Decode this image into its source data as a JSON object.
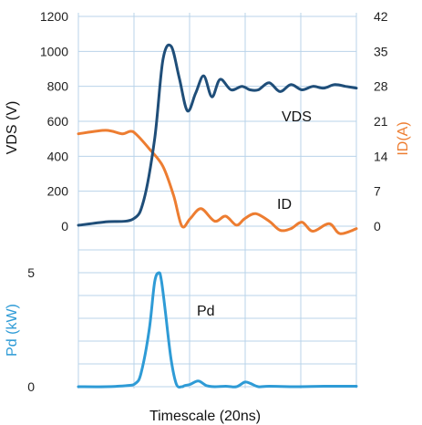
{
  "chart_data": [
    {
      "type": "line",
      "panel": "top",
      "xlabel": "",
      "ylabel": "VDS (V)",
      "ylim": [
        0,
        1200
      ],
      "yticks": [
        "0",
        "200",
        "400",
        "600",
        "800",
        "1000",
        "1200"
      ],
      "ylabel_right": "ID(A)",
      "y2lim": [
        0,
        42
      ],
      "y2ticks": [
        "0",
        "7",
        "14",
        "21",
        "28",
        "35",
        "42"
      ],
      "grid": true,
      "annotations": [
        {
          "text": "VDS"
        },
        {
          "text": "ID"
        }
      ],
      "series": [
        {
          "name": "VDS",
          "axis": "left",
          "color": "#1f4e79",
          "x": [
            0,
            0.5,
            1,
            1.2,
            1.4,
            1.55,
            1.7,
            1.85,
            2.0,
            2.15,
            2.3,
            2.45,
            2.6,
            2.8,
            3.0,
            3.15,
            3.3,
            3.5,
            3.7,
            3.9,
            4.1,
            4.3,
            4.5,
            4.7,
            4.9,
            5.1
          ],
          "values": [
            5,
            25,
            40,
            150,
            500,
            950,
            1030,
            850,
            660,
            760,
            860,
            740,
            840,
            780,
            800,
            780,
            780,
            820,
            770,
            810,
            780,
            800,
            790,
            810,
            800,
            790
          ]
        },
        {
          "name": "ID",
          "axis": "right",
          "color": "#ed7d31",
          "x": [
            0,
            0.5,
            0.8,
            0.95,
            1.05,
            1.3,
            1.55,
            1.75,
            1.9,
            2.05,
            2.25,
            2.5,
            2.7,
            2.9,
            3.05,
            3.25,
            3.5,
            3.7,
            3.9,
            4.1,
            4.3,
            4.6,
            4.8,
            5.1
          ],
          "values": [
            18.5,
            19.2,
            18.5,
            19.0,
            18.5,
            15.5,
            12.0,
            6.0,
            0.0,
            1.5,
            3.5,
            1.0,
            2.0,
            0.2,
            1.5,
            2.5,
            1.0,
            -0.8,
            -0.5,
            0.8,
            -1.0,
            0.5,
            -1.5,
            -0.5
          ]
        }
      ]
    },
    {
      "type": "line",
      "panel": "bottom",
      "xlabel": "Timescale (20ns)",
      "ylabel": "Pd (kW)",
      "ylim": [
        0,
        5
      ],
      "yticks": [
        "0",
        "5"
      ],
      "grid": true,
      "annotations": [
        {
          "text": "Pd"
        }
      ],
      "series": [
        {
          "name": "Pd",
          "axis": "left",
          "color": "#2e9bd6",
          "x": [
            0,
            0.5,
            0.9,
            1.05,
            1.15,
            1.3,
            1.4,
            1.48,
            1.52,
            1.56,
            1.6,
            1.7,
            1.8,
            1.9,
            1.95,
            2.05,
            2.2,
            2.35,
            2.5,
            2.7,
            2.9,
            3.05,
            3.15,
            3.3,
            3.5,
            4.0,
            4.5,
            5.1
          ],
          "values": [
            0.0,
            0.0,
            0.05,
            0.15,
            0.6,
            2.5,
            4.6,
            5.0,
            4.7,
            4.0,
            3.2,
            1.2,
            0.1,
            0.0,
            0.05,
            0.1,
            0.25,
            0.05,
            0.0,
            0.02,
            0.0,
            0.2,
            0.15,
            0.0,
            0.02,
            0.0,
            0.02,
            0.02
          ]
        }
      ]
    }
  ]
}
